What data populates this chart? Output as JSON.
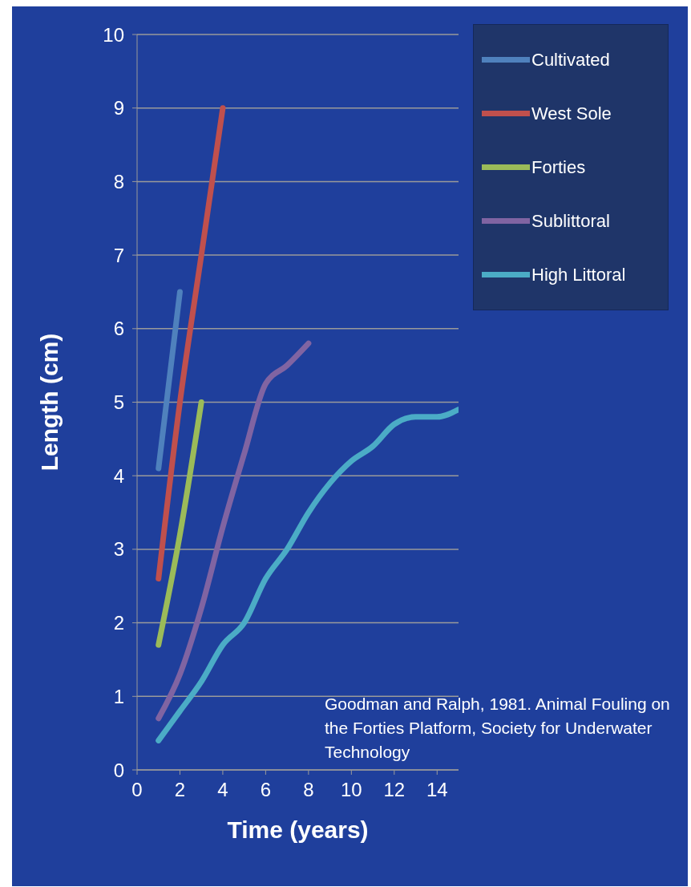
{
  "chart_data": {
    "type": "line",
    "xlabel": "Time (years)",
    "ylabel": "Length (cm)",
    "xlim": [
      0,
      15
    ],
    "xticks": [
      0,
      2,
      4,
      6,
      8,
      10,
      12,
      14
    ],
    "ylim": [
      0,
      10
    ],
    "yticks": [
      0,
      1,
      2,
      3,
      4,
      5,
      6,
      7,
      8,
      9,
      10
    ],
    "grid": "y",
    "legend": "top right",
    "marker": "none",
    "line_style": "solid",
    "annotations": [
      "Goodman and Ralph, 1981.  Animal Fouling on the Forties Platform, Society for Underwater Technology"
    ],
    "series": [
      {
        "name": "Cultivated",
        "color": "#4f81bd",
        "x": [
          1,
          2
        ],
        "values": [
          4.1,
          6.5
        ]
      },
      {
        "name": "West Sole",
        "color": "#c0504d",
        "x": [
          1,
          2,
          3,
          4
        ],
        "values": [
          2.6,
          5.0,
          7.0,
          9.0
        ]
      },
      {
        "name": "Forties",
        "color": "#9bbb59",
        "x": [
          1,
          2,
          3
        ],
        "values": [
          1.7,
          3.2,
          5.0
        ]
      },
      {
        "name": "Sublittoral",
        "color": "#8064a2",
        "x": [
          1,
          2,
          3,
          4,
          5,
          6,
          7,
          8
        ],
        "values": [
          0.7,
          1.3,
          2.2,
          3.3,
          4.3,
          5.25,
          5.5,
          5.8
        ]
      },
      {
        "name": "High Littoral",
        "color": "#4bacc6",
        "x": [
          1,
          2,
          3,
          4,
          5,
          6,
          7,
          8,
          9,
          10,
          11,
          12,
          13,
          14,
          15
        ],
        "values": [
          0.4,
          0.8,
          1.2,
          1.7,
          2.0,
          2.6,
          3.0,
          3.5,
          3.9,
          4.2,
          4.4,
          4.7,
          4.8,
          4.8,
          4.9
        ]
      }
    ]
  }
}
